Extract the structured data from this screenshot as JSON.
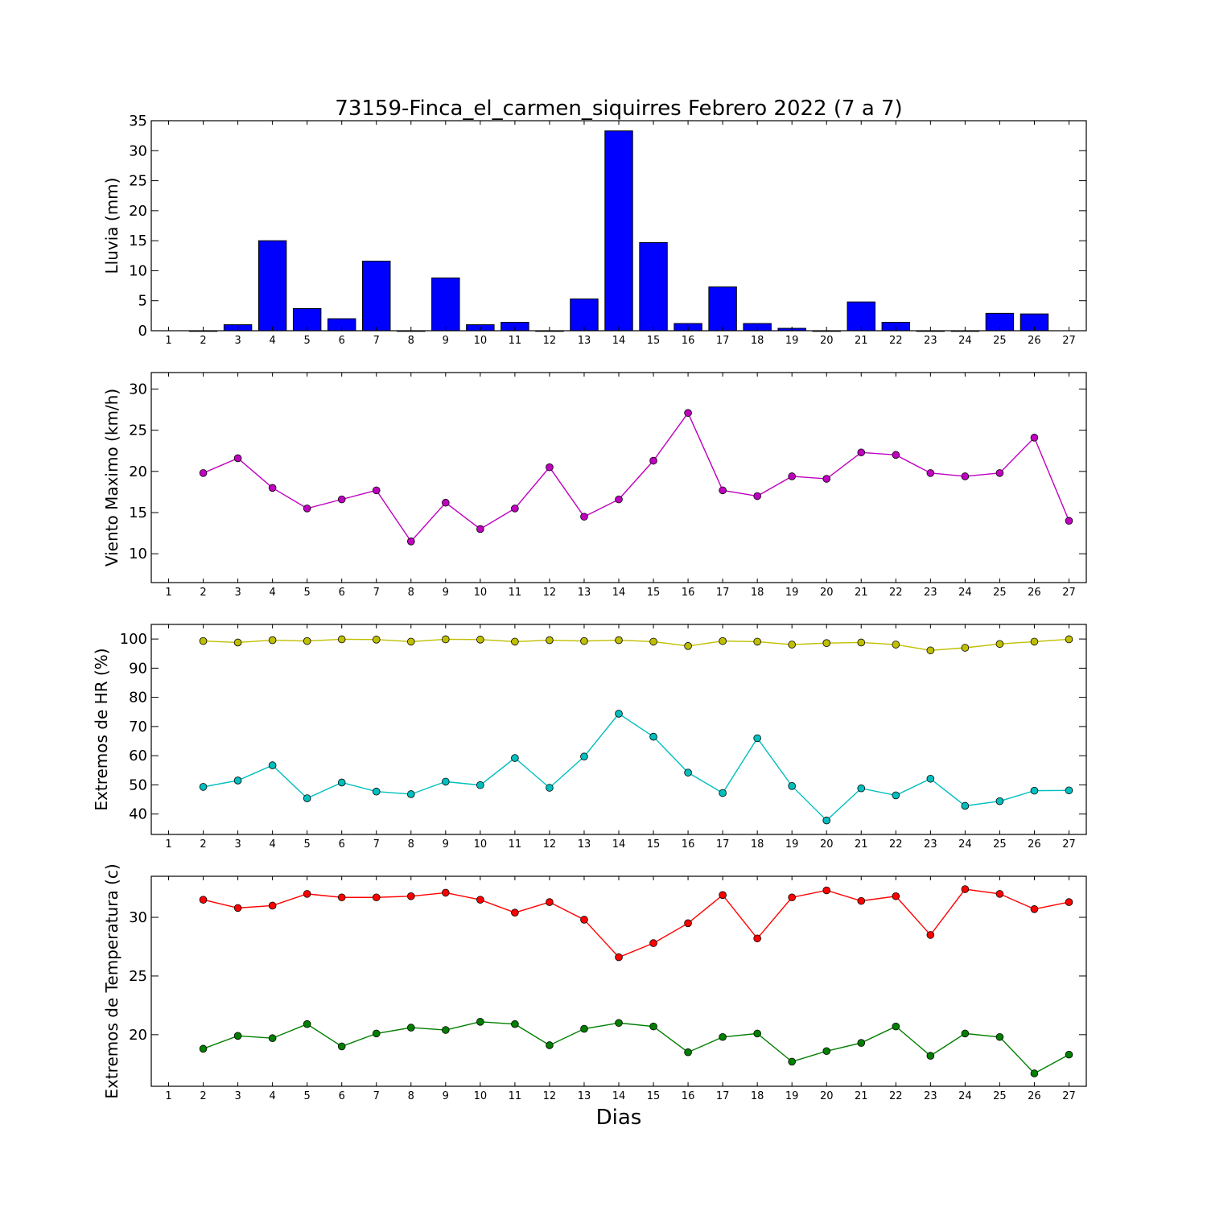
{
  "figure": {
    "title": "73159-Finca_el_carmen_siquirres Febrero 2022  (7 a 7)",
    "xlabel": "Dias"
  },
  "chart_data": [
    {
      "type": "bar",
      "ylabel": "Lluvia (mm)",
      "ylim": [
        0,
        35
      ],
      "yticks": [
        0,
        5,
        10,
        15,
        20,
        25,
        30,
        35
      ],
      "xlim": [
        0.5,
        27.5
      ],
      "xticks": [
        1,
        2,
        3,
        4,
        5,
        6,
        7,
        8,
        9,
        10,
        11,
        12,
        13,
        14,
        15,
        16,
        17,
        18,
        19,
        20,
        21,
        22,
        23,
        24,
        25,
        26,
        27
      ],
      "series": [
        {
          "color": "#0000ff",
          "x": [
            2,
            3,
            4,
            5,
            6,
            7,
            8,
            9,
            10,
            11,
            12,
            13,
            14,
            15,
            16,
            17,
            18,
            19,
            20,
            21,
            22,
            23,
            24,
            25,
            26
          ],
          "values": [
            0,
            1,
            15,
            3.7,
            2,
            11.6,
            0,
            8.8,
            1,
            1.4,
            0,
            5.3,
            33.3,
            14.7,
            1.2,
            7.3,
            1.2,
            0.4,
            0,
            4.8,
            1.4,
            0,
            0,
            2.9,
            2.8
          ]
        }
      ]
    },
    {
      "type": "line",
      "ylabel": "Viento Maximo (km/h)",
      "ylim": [
        6.5,
        32
      ],
      "yticks": [
        10,
        15,
        20,
        25,
        30
      ],
      "xlim": [
        0.5,
        27.5
      ],
      "xticks": [
        1,
        2,
        3,
        4,
        5,
        6,
        7,
        8,
        9,
        10,
        11,
        12,
        13,
        14,
        15,
        16,
        17,
        18,
        19,
        20,
        21,
        22,
        23,
        24,
        25,
        26,
        27
      ],
      "series": [
        {
          "color": "#bf00bf",
          "x": [
            2,
            3,
            4,
            5,
            6,
            7,
            8,
            9,
            10,
            11,
            12,
            13,
            14,
            15,
            16,
            17,
            18,
            19,
            20,
            21,
            22,
            23,
            24,
            25,
            26,
            27
          ],
          "values": [
            19.8,
            21.6,
            18,
            15.5,
            16.6,
            17.7,
            11.5,
            16.2,
            13,
            15.5,
            20.5,
            14.5,
            16.6,
            21.3,
            27.1,
            17.7,
            17,
            19.4,
            19.1,
            22.3,
            22,
            19.8,
            19.4,
            19.8,
            24.1,
            14
          ]
        }
      ]
    },
    {
      "type": "line",
      "ylabel": "Extremos de HR (%)",
      "ylim": [
        33,
        105
      ],
      "yticks": [
        40,
        50,
        60,
        70,
        80,
        90,
        100
      ],
      "xlim": [
        0.5,
        27.5
      ],
      "xticks": [
        1,
        2,
        3,
        4,
        5,
        6,
        7,
        8,
        9,
        10,
        11,
        12,
        13,
        14,
        15,
        16,
        17,
        18,
        19,
        20,
        21,
        22,
        23,
        24,
        25,
        26,
        27
      ],
      "series": [
        {
          "color": "#bfbf00",
          "x": [
            2,
            3,
            4,
            5,
            6,
            7,
            8,
            9,
            10,
            11,
            12,
            13,
            14,
            15,
            16,
            17,
            18,
            19,
            20,
            21,
            22,
            23,
            24,
            25,
            26,
            27
          ],
          "values": [
            99.3,
            98.8,
            99.6,
            99.3,
            99.9,
            99.8,
            99.1,
            99.9,
            99.8,
            99.1,
            99.6,
            99.3,
            99.6,
            99.1,
            97.6,
            99.3,
            99.1,
            98.1,
            98.6,
            98.8,
            98.1,
            96.1,
            97,
            98.3,
            99.1,
            99.9
          ]
        },
        {
          "color": "#00bfbf",
          "x": [
            2,
            3,
            4,
            5,
            6,
            7,
            8,
            9,
            10,
            11,
            12,
            13,
            14,
            15,
            16,
            17,
            18,
            19,
            20,
            21,
            22,
            23,
            24,
            25,
            26,
            27
          ],
          "values": [
            49.3,
            51.5,
            56.7,
            45.4,
            50.8,
            47.7,
            46.8,
            51.1,
            49.9,
            59.2,
            49,
            59.7,
            74.4,
            66.5,
            54.2,
            47.2,
            66,
            49.6,
            37.8,
            48.8,
            46.4,
            52.1,
            42.8,
            44.4,
            48,
            48.1
          ]
        }
      ]
    },
    {
      "type": "line",
      "ylabel": "Extremos de Temperatura (c)",
      "ylim": [
        15.6,
        33.5
      ],
      "yticks": [
        20,
        25,
        30
      ],
      "xlim": [
        0.5,
        27.5
      ],
      "xticks": [
        1,
        2,
        3,
        4,
        5,
        6,
        7,
        8,
        9,
        10,
        11,
        12,
        13,
        14,
        15,
        16,
        17,
        18,
        19,
        20,
        21,
        22,
        23,
        24,
        25,
        26,
        27
      ],
      "series": [
        {
          "color": "#ff0000",
          "x": [
            2,
            3,
            4,
            5,
            6,
            7,
            8,
            9,
            10,
            11,
            12,
            13,
            14,
            15,
            16,
            17,
            18,
            19,
            20,
            21,
            22,
            23,
            24,
            25,
            26,
            27
          ],
          "values": [
            31.5,
            30.8,
            31,
            32,
            31.7,
            31.7,
            31.8,
            32.1,
            31.5,
            30.4,
            31.3,
            29.8,
            26.6,
            27.8,
            29.5,
            31.9,
            28.2,
            31.7,
            32.3,
            31.4,
            31.8,
            28.5,
            32.4,
            32,
            30.7,
            31.3
          ]
        },
        {
          "color": "#007f00",
          "x": [
            2,
            3,
            4,
            5,
            6,
            7,
            8,
            9,
            10,
            11,
            12,
            13,
            14,
            15,
            16,
            17,
            18,
            19,
            20,
            21,
            22,
            23,
            24,
            25,
            26,
            27
          ],
          "values": [
            18.8,
            19.9,
            19.7,
            20.9,
            19,
            20.1,
            20.6,
            20.4,
            21.1,
            20.9,
            19.1,
            20.5,
            21,
            20.7,
            18.5,
            19.8,
            20.1,
            17.7,
            18.6,
            19.3,
            20.7,
            18.2,
            20.1,
            19.8,
            16.7,
            18.3
          ]
        }
      ]
    }
  ]
}
